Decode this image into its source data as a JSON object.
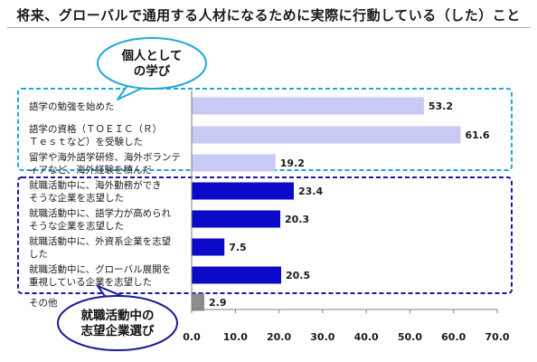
{
  "chart_data": {
    "type": "bar",
    "orientation": "horizontal",
    "title": "将来、グローバルで通用する人材になるために実際に行動している（した）こと",
    "xlim": [
      0,
      70
    ],
    "xticks": [
      "0.0",
      "10.0",
      "20.0",
      "30.0",
      "40.0",
      "50.0",
      "60.0",
      "70.0"
    ],
    "grid": false,
    "categories": [
      [
        "語学の勉強を始めた"
      ],
      [
        "語学の資格（ＴＯＥＩＣ（Ｒ）",
        "Ｔｅｓｔなど）を受験した"
      ],
      [
        "留学や海外語学研修、海外ボランテ",
        "ィアなど、海外経験を積んだ"
      ],
      [
        "就職活動中に、海外勤務ができ",
        "そうな企業を志望した"
      ],
      [
        "就職活動中に、語学力が高められ",
        "そうな企業を志望した"
      ],
      [
        "就職活動中に、外資系企業を志望",
        "した"
      ],
      [
        "就職活動中に、グローバル展開を",
        "重視している企業を志望した"
      ],
      [
        "その他"
      ]
    ],
    "values": [
      53.2,
      61.6,
      19.2,
      23.4,
      20.3,
      7.5,
      20.5,
      2.9
    ],
    "value_labels": [
      "53.2",
      "61.6",
      "19.2",
      "23.4",
      "20.3",
      "7.5",
      "20.5",
      "2.9"
    ],
    "bar_colors": [
      "#c9c9f5",
      "#c9c9f5",
      "#c9c9f5",
      "#0a0ac8",
      "#0a0ac8",
      "#0a0ac8",
      "#0a0ac8",
      "#8c8c8c"
    ],
    "groups": [
      {
        "label_lines": [
          "個人として",
          "の学び"
        ],
        "border_color": "#1ea8d8",
        "fill": "#ffffff"
      },
      {
        "label_lines": [
          "就職活動中の",
          "志望企業選び"
        ],
        "border_color": "#1a1a9a",
        "fill": "#ffffff"
      }
    ]
  }
}
